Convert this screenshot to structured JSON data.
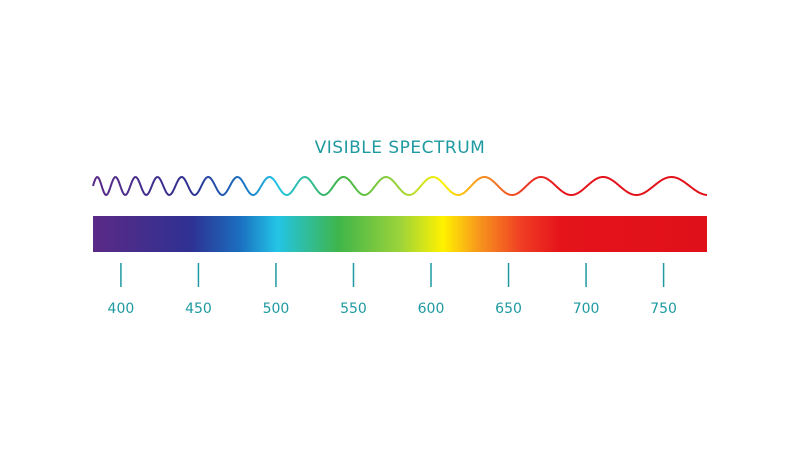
{
  "chart_data": {
    "type": "spectrum",
    "title": "VISIBLE SPECTRUM",
    "xlim": [
      382,
      778
    ],
    "xticks": [
      400,
      450,
      500,
      550,
      600,
      650,
      700,
      750
    ]
  }
}
